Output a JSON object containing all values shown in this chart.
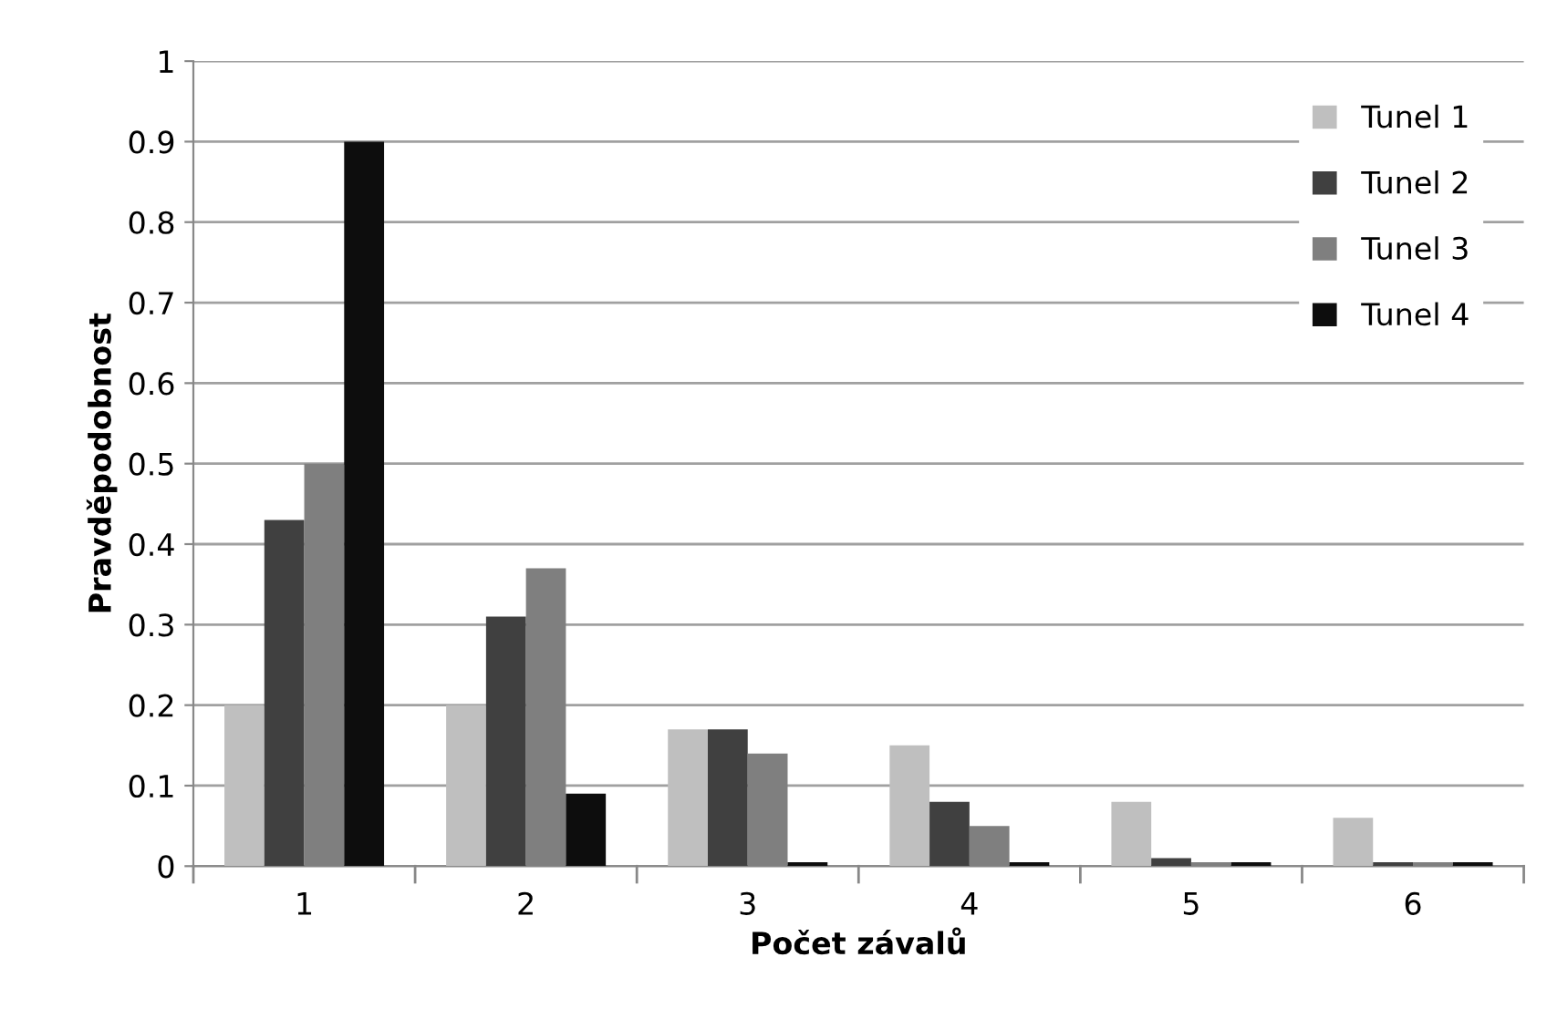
{
  "chart_data": {
    "type": "bar",
    "xlabel": "Počet závalů",
    "ylabel": "Pravděpodobnost",
    "categories": [
      "1",
      "2",
      "3",
      "4",
      "5",
      "6"
    ],
    "series": [
      {
        "name": "Tunel 1",
        "color": "#bfbfbf",
        "values": [
          0.2,
          0.2,
          0.17,
          0.15,
          0.08,
          0.06
        ]
      },
      {
        "name": "Tunel 2",
        "color": "#404040",
        "values": [
          0.43,
          0.31,
          0.17,
          0.08,
          0.01,
          0.005
        ]
      },
      {
        "name": "Tunel 3",
        "color": "#7f7f7f",
        "values": [
          0.5,
          0.37,
          0.14,
          0.05,
          0.005,
          0.005
        ]
      },
      {
        "name": "Tunel 4",
        "color": "#0d0d0d",
        "values": [
          0.9,
          0.09,
          0.005,
          0.005,
          0.005,
          0.005
        ]
      }
    ],
    "ylim": [
      0,
      1
    ],
    "yticks": [
      0,
      0.1,
      0.2,
      0.3,
      0.4,
      0.5,
      0.6,
      0.7,
      0.8,
      0.9,
      1
    ],
    "grid": "y",
    "legend": "top right"
  }
}
